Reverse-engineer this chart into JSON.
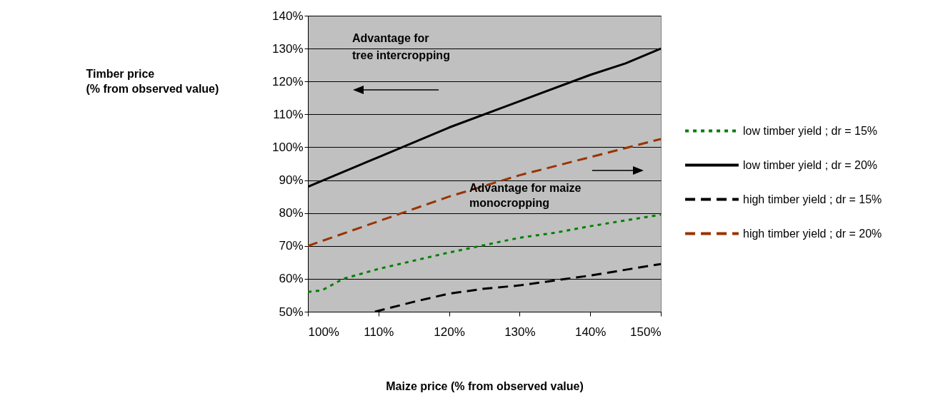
{
  "chart_data": {
    "type": "line",
    "xlabel": "Maize price (% from observed value)",
    "ylabel": "Timber price\n(% from observed value)",
    "annotations": [
      "Advantage for\ntree intercropping",
      "Advantage for maize\nmonocropping"
    ],
    "xlim": [
      100,
      150
    ],
    "xticks": [
      {
        "value": 100,
        "label": "100%"
      },
      {
        "value": 110,
        "label": "110%"
      },
      {
        "value": 120,
        "label": "120%"
      },
      {
        "value": 130,
        "label": "130%"
      },
      {
        "value": 140,
        "label": "140%"
      },
      {
        "value": 150,
        "label": "150%"
      }
    ],
    "ylim": [
      50,
      140
    ],
    "yticks": [
      {
        "value": 50,
        "label": "50%"
      },
      {
        "value": 60,
        "label": "60%"
      },
      {
        "value": 70,
        "label": "70%"
      },
      {
        "value": 80,
        "label": "80%"
      },
      {
        "value": 90,
        "label": "90%"
      },
      {
        "value": 100,
        "label": "100%"
      },
      {
        "value": 110,
        "label": "110%"
      },
      {
        "value": 120,
        "label": "120%"
      },
      {
        "value": 130,
        "label": "130%"
      },
      {
        "value": 140,
        "label": "140%"
      }
    ],
    "grid": "y",
    "legend": "right",
    "series": [
      {
        "name": "low  timber yield ; dr = 15%",
        "color": "#008000",
        "line_style": "dotted",
        "x": [
          100,
          102,
          105,
          110,
          120,
          130,
          135,
          140,
          150
        ],
        "values": [
          56,
          56.5,
          60,
          63,
          68,
          72.5,
          74,
          76,
          79.5
        ]
      },
      {
        "name": "low  timber yield ; dr = 20%",
        "color": "#000000",
        "line_style": "solid",
        "x": [
          100,
          110,
          120,
          130,
          140,
          145,
          150
        ],
        "values": [
          88,
          97,
          106,
          114,
          122,
          125.5,
          130
        ]
      },
      {
        "name": "high timber yield ; dr = 15%",
        "color": "#000000",
        "line_style": "dashed",
        "x": [
          109.5,
          115,
          120,
          125,
          130,
          140,
          150
        ],
        "values": [
          50,
          53,
          55.5,
          57,
          58,
          61,
          64.5
        ]
      },
      {
        "name": "high timber yield ; dr = 20%",
        "color": "#993300",
        "line_style": "dashed",
        "x": [
          100,
          110,
          120,
          130,
          140,
          150
        ],
        "values": [
          70,
          77.5,
          85,
          91.5,
          97,
          102.5
        ]
      }
    ]
  }
}
